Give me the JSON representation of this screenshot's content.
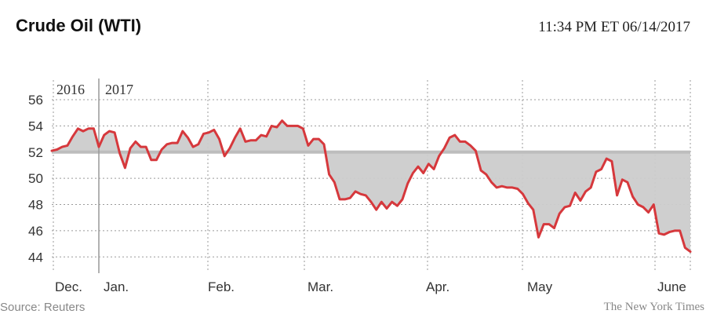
{
  "title": "Crude Oil (WTI)",
  "timestamp": "11:34 PM ET  06/14/2017",
  "source": "Source: Reuters",
  "credit": "The New York Times",
  "colors": {
    "line": "#d6383c",
    "fill": "#cccccc",
    "baseline": "#bdbdbd",
    "grid": "#9a9a9a"
  },
  "chart_data": {
    "type": "area",
    "title": "Crude Oil (WTI)",
    "xlabel": "",
    "ylabel": "",
    "ylim": [
      43,
      57.5
    ],
    "yticks": [
      44,
      46,
      48,
      50,
      52,
      54,
      56
    ],
    "baseline": 52,
    "grid": true,
    "year_labels": [
      "2016",
      "2017"
    ],
    "month_labels": [
      "Dec.",
      "Jan.",
      "Feb.",
      "Mar.",
      "Apr.",
      "May",
      "June"
    ],
    "series": [
      {
        "values": [
          52.1,
          52.2,
          52.4,
          52.5,
          53.2,
          53.8,
          53.6,
          53.8,
          53.8,
          52.4,
          53.3,
          53.6,
          53.5,
          51.9,
          50.8,
          52.3,
          52.8,
          52.4,
          52.4,
          51.4,
          51.4,
          52.2,
          52.6,
          52.7,
          52.7,
          53.6,
          53.1,
          52.4,
          52.6,
          53.4,
          53.5,
          53.7,
          53.0,
          51.7,
          52.3,
          53.1,
          53.8,
          52.8,
          52.9,
          52.9,
          53.3,
          53.2,
          54.0,
          53.9,
          54.4,
          54.0,
          54.0,
          54.0,
          53.8,
          52.5,
          53.0,
          53.0,
          52.6,
          50.3,
          49.7,
          48.4,
          48.4,
          48.5,
          49.0,
          48.8,
          48.7,
          48.2,
          47.6,
          48.2,
          47.7,
          48.2,
          47.9,
          48.4,
          49.6,
          50.4,
          50.9,
          50.4,
          51.1,
          50.7,
          51.7,
          52.3,
          53.1,
          53.3,
          52.8,
          52.8,
          52.5,
          52.1,
          50.6,
          50.3,
          49.7,
          49.3,
          49.4,
          49.3,
          49.3,
          49.2,
          48.8,
          48.1,
          47.6,
          45.5,
          46.5,
          46.5,
          46.2,
          47.3,
          47.8,
          47.9,
          48.9,
          48.3,
          49.0,
          49.3,
          50.5,
          50.7,
          51.5,
          51.3,
          48.7,
          49.9,
          49.7,
          48.6,
          48.0,
          47.8,
          47.4,
          48.0,
          45.8,
          45.7,
          45.9,
          46.0,
          46.0,
          44.7,
          44.4
        ]
      }
    ]
  }
}
